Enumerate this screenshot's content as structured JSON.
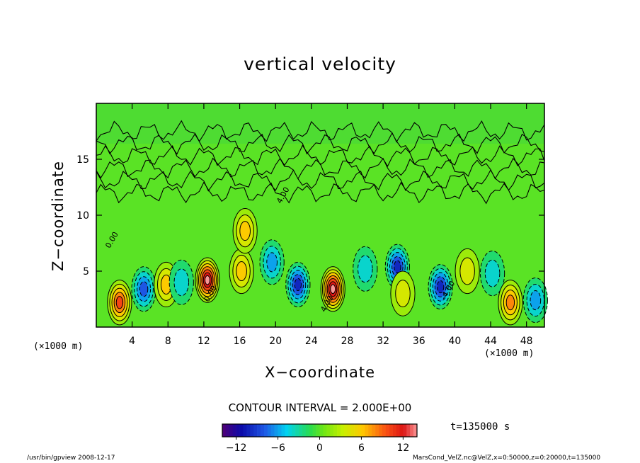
{
  "chart_data": {
    "type": "heatmap",
    "title": "vertical velocity",
    "xlabel": "X−coordinate",
    "ylabel": "Z−coordinate",
    "x_unit_left": "(×1000 m)",
    "x_unit_right": "(×1000 m)",
    "xlim": [
      0,
      50
    ],
    "ylim": [
      0,
      20
    ],
    "x_ticks": [
      4,
      8,
      12,
      16,
      20,
      24,
      28,
      32,
      36,
      40,
      44,
      48
    ],
    "y_ticks": [
      5,
      10,
      15
    ],
    "contour_interval": "CONTOUR INTERVAL = 2.000E+00",
    "colorbar": {
      "min": -14,
      "max": 14,
      "ticks": [
        -12,
        -6,
        0,
        6,
        12
      ]
    },
    "contour_labels": [
      "0.00",
      "4.00",
      "-4.00"
    ],
    "cells": [
      {
        "x": 2.6,
        "z": 2.2,
        "value": 10
      },
      {
        "x": 5.3,
        "z": 3.4,
        "value": -7
      },
      {
        "x": 7.8,
        "z": 3.8,
        "value": 5
      },
      {
        "x": 9.5,
        "z": 4.0,
        "value": -4
      },
      {
        "x": 12.4,
        "z": 4.2,
        "value": 14
      },
      {
        "x": 16.2,
        "z": 5.0,
        "value": 5
      },
      {
        "x": 16.6,
        "z": 8.6,
        "value": 6
      },
      {
        "x": 19.6,
        "z": 5.8,
        "value": -5
      },
      {
        "x": 22.5,
        "z": 3.8,
        "value": -9
      },
      {
        "x": 26.4,
        "z": 3.4,
        "value": 13
      },
      {
        "x": 30.0,
        "z": 5.2,
        "value": -3
      },
      {
        "x": 33.6,
        "z": 5.4,
        "value": -9
      },
      {
        "x": 34.2,
        "z": 3.0,
        "value": 4
      },
      {
        "x": 38.4,
        "z": 3.6,
        "value": -10
      },
      {
        "x": 41.4,
        "z": 5.0,
        "value": 4
      },
      {
        "x": 44.2,
        "z": 4.8,
        "value": -3
      },
      {
        "x": 46.2,
        "z": 2.2,
        "value": 8
      },
      {
        "x": 49.0,
        "z": 2.4,
        "value": -5
      }
    ]
  },
  "time_label": "t=135000 s",
  "footer": {
    "left": "/usr/bin/gpview  2008-12-17",
    "right": "MarsCond_VelZ.nc@VelZ,x=0:50000,z=0:20000,t=135000"
  }
}
